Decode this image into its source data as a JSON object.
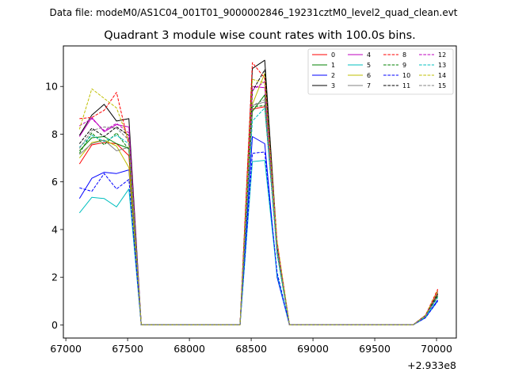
{
  "chart_data": {
    "type": "line",
    "suptitle": "Data file: modeM0/AS1C04_001T01_9000002846_19231cztM0_level2_quad_clean.evt",
    "title": "Quadrant 3 module wise count rates with 100.0s bins.",
    "xlabel": "",
    "ylabel": "",
    "offset_label": "+2.933e8",
    "xlim": [
      66980,
      70160
    ],
    "ylim": [
      -0.55,
      11.7
    ],
    "xticks": [
      67000,
      67500,
      68000,
      68500,
      69000,
      69500,
      70000
    ],
    "xtick_labels": [
      "67000",
      "67500",
      "68000",
      "68500",
      "69000",
      "69500",
      "70000"
    ],
    "yticks": [
      0,
      2,
      4,
      6,
      8,
      10
    ],
    "ytick_labels": [
      "0",
      "2",
      "4",
      "6",
      "8",
      "10"
    ],
    "grid": false,
    "legend": {
      "placement": "top-right",
      "columns": 4
    },
    "x": [
      67110,
      67210,
      67310,
      67410,
      67510,
      67610,
      67710,
      67810,
      67910,
      68010,
      68110,
      68210,
      68310,
      68410,
      68510,
      68610,
      68710,
      68810,
      68910,
      69010,
      69110,
      69210,
      69310,
      69410,
      69510,
      69610,
      69710,
      69810,
      69910,
      70010
    ],
    "series": [
      {
        "name": "0",
        "color": "#ff0000",
        "dash": "solid",
        "values": [
          6.75,
          7.55,
          7.65,
          7.6,
          7.1,
          0,
          0,
          0,
          0,
          0,
          0,
          0,
          0,
          0,
          9.05,
          9.15,
          3.2,
          0,
          0,
          0,
          0,
          0,
          0,
          0,
          0,
          0,
          0,
          0,
          0.35,
          1.45
        ]
      },
      {
        "name": "1",
        "color": "#008000",
        "dash": "solid",
        "values": [
          7.3,
          7.85,
          7.9,
          7.6,
          7.4,
          0,
          0,
          0,
          0,
          0,
          0,
          0,
          0,
          0,
          8.95,
          9.65,
          3.0,
          0,
          0,
          0,
          0,
          0,
          0,
          0,
          0,
          0,
          0,
          0,
          0.4,
          1.25
        ]
      },
      {
        "name": "2",
        "color": "#0000ff",
        "dash": "solid",
        "values": [
          5.3,
          6.15,
          6.4,
          6.35,
          6.5,
          0,
          0,
          0,
          0,
          0,
          0,
          0,
          0,
          0,
          7.9,
          7.6,
          2.0,
          0,
          0,
          0,
          0,
          0,
          0,
          0,
          0,
          0,
          0,
          0,
          0.3,
          1.05
        ]
      },
      {
        "name": "3",
        "color": "#000000",
        "dash": "solid",
        "values": [
          7.95,
          8.8,
          9.25,
          8.55,
          8.65,
          0,
          0,
          0,
          0,
          0,
          0,
          0,
          0,
          0,
          10.75,
          11.1,
          3.4,
          0,
          0,
          0,
          0,
          0,
          0,
          0,
          0,
          0,
          0,
          0,
          0.4,
          1.3
        ]
      },
      {
        "name": "4",
        "color": "#bf00bf",
        "dash": "solid",
        "values": [
          7.9,
          8.7,
          8.1,
          8.4,
          8.3,
          0,
          0,
          0,
          0,
          0,
          0,
          0,
          0,
          0,
          10.0,
          9.95,
          3.3,
          0,
          0,
          0,
          0,
          0,
          0,
          0,
          0,
          0,
          0,
          0,
          0.4,
          1.35
        ]
      },
      {
        "name": "5",
        "color": "#00bfbf",
        "dash": "solid",
        "values": [
          4.7,
          5.35,
          5.3,
          4.95,
          5.7,
          0,
          0,
          0,
          0,
          0,
          0,
          0,
          0,
          0,
          6.85,
          6.9,
          2.1,
          0,
          0,
          0,
          0,
          0,
          0,
          0,
          0,
          0,
          0,
          0,
          0.3,
          1.0
        ]
      },
      {
        "name": "6",
        "color": "#bfbf00",
        "dash": "solid",
        "values": [
          7.0,
          7.65,
          7.75,
          7.5,
          6.6,
          0,
          0,
          0,
          0,
          0,
          0,
          0,
          0,
          0,
          9.25,
          10.55,
          3.3,
          0,
          0,
          0,
          0,
          0,
          0,
          0,
          0,
          0,
          0,
          0,
          0.35,
          1.35
        ]
      },
      {
        "name": "7",
        "color": "#808080",
        "dash": "solid",
        "values": [
          7.15,
          7.6,
          7.75,
          7.3,
          7.45,
          0,
          0,
          0,
          0,
          0,
          0,
          0,
          0,
          0,
          9.2,
          9.35,
          3.1,
          0,
          0,
          0,
          0,
          0,
          0,
          0,
          0,
          0,
          0,
          0,
          0.35,
          1.2
        ]
      },
      {
        "name": "8",
        "color": "#ff0000",
        "dash": "dashed",
        "values": [
          8.65,
          8.7,
          9.0,
          9.75,
          7.55,
          0,
          0,
          0,
          0,
          0,
          0,
          0,
          0,
          0,
          11.0,
          10.35,
          3.5,
          0,
          0,
          0,
          0,
          0,
          0,
          0,
          0,
          0,
          0,
          0,
          0.4,
          1.5
        ]
      },
      {
        "name": "9",
        "color": "#008000",
        "dash": "dashed",
        "values": [
          7.2,
          8.05,
          7.55,
          8.05,
          7.35,
          0,
          0,
          0,
          0,
          0,
          0,
          0,
          0,
          0,
          9.15,
          9.2,
          3.0,
          0,
          0,
          0,
          0,
          0,
          0,
          0,
          0,
          0,
          0,
          0,
          0.35,
          1.2
        ]
      },
      {
        "name": "10",
        "color": "#0000ff",
        "dash": "dashed",
        "values": [
          5.75,
          5.6,
          6.35,
          5.7,
          6.1,
          0,
          0,
          0,
          0,
          0,
          0,
          0,
          0,
          0,
          7.2,
          7.25,
          2.2,
          0,
          0,
          0,
          0,
          0,
          0,
          0,
          0,
          0,
          0,
          0,
          0.3,
          1.0
        ]
      },
      {
        "name": "11",
        "color": "#000000",
        "dash": "dashed",
        "values": [
          7.6,
          8.25,
          7.9,
          8.3,
          7.95,
          0,
          0,
          0,
          0,
          0,
          0,
          0,
          0,
          0,
          9.8,
          10.7,
          3.3,
          0,
          0,
          0,
          0,
          0,
          0,
          0,
          0,
          0,
          0,
          0,
          0.4,
          1.3
        ]
      },
      {
        "name": "12",
        "color": "#bf00bf",
        "dash": "dashed",
        "values": [
          8.35,
          8.65,
          8.15,
          8.45,
          8.05,
          0,
          0,
          0,
          0,
          0,
          0,
          0,
          0,
          0,
          9.85,
          10.2,
          3.35,
          0,
          0,
          0,
          0,
          0,
          0,
          0,
          0,
          0,
          0,
          0,
          0.4,
          1.4
        ]
      },
      {
        "name": "13",
        "color": "#00bfbf",
        "dash": "dashed",
        "values": [
          7.45,
          7.95,
          7.7,
          7.95,
          7.6,
          0,
          0,
          0,
          0,
          0,
          0,
          0,
          0,
          0,
          8.55,
          9.1,
          3.0,
          0,
          0,
          0,
          0,
          0,
          0,
          0,
          0,
          0,
          0,
          0,
          0.35,
          1.15
        ]
      },
      {
        "name": "14",
        "color": "#bfbf00",
        "dash": "dashed",
        "values": [
          8.2,
          9.9,
          9.5,
          9.1,
          7.7,
          0,
          0,
          0,
          0,
          0,
          0,
          0,
          0,
          0,
          10.3,
          10.15,
          3.5,
          0,
          0,
          0,
          0,
          0,
          0,
          0,
          0,
          0,
          0,
          0,
          0.4,
          1.45
        ]
      },
      {
        "name": "15",
        "color": "#808080",
        "dash": "dashed",
        "values": [
          7.4,
          8.15,
          8.3,
          8.25,
          7.75,
          0,
          0,
          0,
          0,
          0,
          0,
          0,
          0,
          0,
          9.2,
          9.45,
          3.15,
          0,
          0,
          0,
          0,
          0,
          0,
          0,
          0,
          0,
          0,
          0,
          0.35,
          1.25
        ]
      }
    ]
  }
}
